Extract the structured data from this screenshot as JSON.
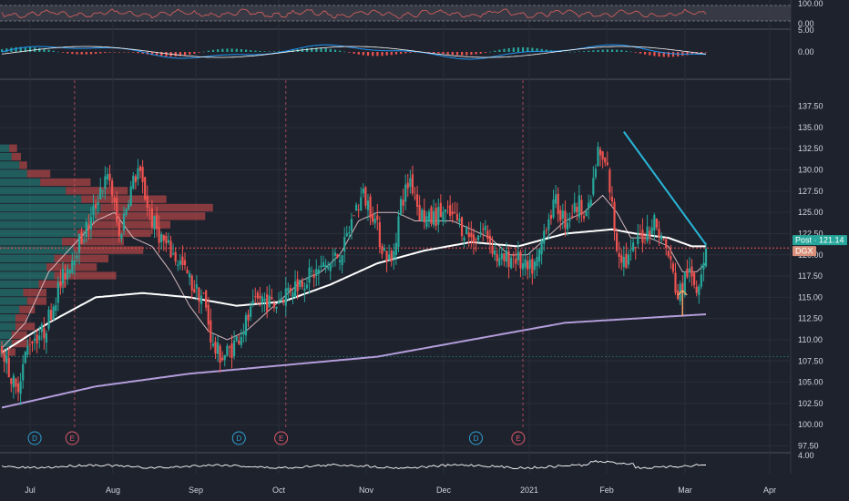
{
  "colors": {
    "background": "#1e222d",
    "grid": "#2a2e39",
    "axis_text": "#d1d4dc",
    "up": "#26a69a",
    "down": "#ef5350",
    "bar_up": "#26a69a",
    "bar_down": "#ef5350",
    "ma_short": "#d5b8bd",
    "ma_mid": "#ffffff",
    "ma_long": "#b39ddb",
    "trendline": "#29b6d9",
    "arrow": "#f0a36b",
    "post_badge": "#26a69a",
    "dgx_badge": "#d9907a",
    "dividend": "#2ea3d4",
    "earnings": "#e05a6a",
    "rsi_line": "#e06060",
    "macd_line": "#2196f3",
    "signal_line": "#ffffff",
    "bottom_line": "#ffffff"
  },
  "chart_data": {
    "type": "candlestick",
    "price_axis": {
      "ticks": [
        "137.50",
        "135.00",
        "132.50",
        "130.00",
        "127.50",
        "125.00",
        "122.50",
        "120.00",
        "117.50",
        "115.00",
        "112.50",
        "110.00",
        "107.50",
        "105.00",
        "102.50",
        "100.00",
        "97.50"
      ],
      "range": [
        96.8,
        139.5
      ]
    },
    "time_axis": {
      "ticks": [
        "Jul",
        "Aug",
        "Sep",
        "Oct",
        "Nov",
        "Dec",
        "2021",
        "Feb",
        "Mar",
        "Apr"
      ]
    },
    "badges": [
      {
        "label": "Post",
        "value": "121.14"
      },
      {
        "label": "DGX",
        "value": ""
      }
    ],
    "last_price": 121.14,
    "reference_level": 120.8,
    "price_anchors": [
      [
        0,
        109
      ],
      [
        6,
        104
      ],
      [
        12,
        110
      ],
      [
        18,
        111
      ],
      [
        24,
        116
      ],
      [
        32,
        121
      ],
      [
        38,
        124
      ],
      [
        42,
        128
      ],
      [
        46,
        129
      ],
      [
        50,
        122
      ],
      [
        54,
        127
      ],
      [
        58,
        130
      ],
      [
        64,
        124
      ],
      [
        70,
        121
      ],
      [
        76,
        119
      ],
      [
        82,
        116
      ],
      [
        86,
        115
      ],
      [
        90,
        109
      ],
      [
        94,
        108
      ],
      [
        98,
        109
      ],
      [
        104,
        112
      ],
      [
        110,
        115
      ],
      [
        116,
        114
      ],
      [
        122,
        116
      ],
      [
        128,
        117
      ],
      [
        134,
        118
      ],
      [
        140,
        119
      ],
      [
        146,
        121
      ],
      [
        150,
        125
      ],
      [
        154,
        127
      ],
      [
        158,
        125
      ],
      [
        162,
        121
      ],
      [
        166,
        119
      ],
      [
        170,
        126
      ],
      [
        174,
        129
      ],
      [
        178,
        125
      ],
      [
        182,
        124
      ],
      [
        188,
        125
      ],
      [
        194,
        124
      ],
      [
        200,
        122
      ],
      [
        206,
        123
      ],
      [
        212,
        119
      ],
      [
        218,
        120
      ],
      [
        224,
        118
      ],
      [
        228,
        119
      ],
      [
        232,
        124
      ],
      [
        236,
        126
      ],
      [
        240,
        124
      ],
      [
        246,
        126
      ],
      [
        250,
        125
      ],
      [
        254,
        132
      ],
      [
        258,
        130
      ],
      [
        262,
        121
      ],
      [
        266,
        119
      ],
      [
        272,
        122
      ],
      [
        278,
        124
      ],
      [
        284,
        120
      ],
      [
        288,
        115
      ],
      [
        292,
        118
      ],
      [
        296,
        116
      ],
      [
        300,
        121.14
      ]
    ],
    "volume_profile": [
      {
        "price": 132.5,
        "up": 1.2,
        "down": 1.0
      },
      {
        "price": 131.5,
        "up": 1.5,
        "down": 1.2
      },
      {
        "price": 130.5,
        "up": 2.5,
        "down": 1.0
      },
      {
        "price": 129.5,
        "up": 3.5,
        "down": 3.0
      },
      {
        "price": 128.5,
        "up": 5.2,
        "down": 6.5
      },
      {
        "price": 127.5,
        "up": 8.5,
        "down": 8.0
      },
      {
        "price": 126.5,
        "up": 10.5,
        "down": 11.0
      },
      {
        "price": 125.5,
        "up": 13.0,
        "down": 14.5
      },
      {
        "price": 124.5,
        "up": 12.5,
        "down": 14.0
      },
      {
        "price": 123.5,
        "up": 11.5,
        "down": 10.5
      },
      {
        "price": 122.5,
        "up": 10.0,
        "down": 9.5
      },
      {
        "price": 121.5,
        "up": 8.0,
        "down": 8.0
      },
      {
        "price": 120.5,
        "up": 9.5,
        "down": 9.0
      },
      {
        "price": 119.5,
        "up": 7.0,
        "down": 7.0
      },
      {
        "price": 118.5,
        "up": 6.0,
        "down": 6.5
      },
      {
        "price": 117.5,
        "up": 7.0,
        "down": 8.0
      },
      {
        "price": 116.5,
        "up": 5.0,
        "down": 3.5
      },
      {
        "price": 115.5,
        "up": 3.0,
        "down": 3.0
      },
      {
        "price": 114.5,
        "up": 3.5,
        "down": 2.5
      },
      {
        "price": 113.5,
        "up": 2.5,
        "down": 2.0
      },
      {
        "price": 112.5,
        "up": 2.0,
        "down": 1.5
      },
      {
        "price": 111.5,
        "up": 2.0,
        "down": 2.5
      },
      {
        "price": 110.5,
        "up": 1.5,
        "down": 2.0
      },
      {
        "price": 109.5,
        "up": 1.5,
        "down": 2.2
      },
      {
        "price": 108.5,
        "up": 1.0,
        "down": 1.0
      }
    ],
    "moving_averages": [
      {
        "period": "short",
        "points": [
          [
            0,
            109
          ],
          [
            10,
            112
          ],
          [
            20,
            118
          ],
          [
            30,
            121
          ],
          [
            40,
            124
          ],
          [
            48,
            125
          ],
          [
            56,
            122
          ],
          [
            64,
            121
          ],
          [
            72,
            118
          ],
          [
            80,
            114
          ],
          [
            88,
            111
          ],
          [
            96,
            110
          ],
          [
            104,
            111
          ],
          [
            112,
            113
          ],
          [
            120,
            115
          ],
          [
            128,
            117
          ],
          [
            136,
            118
          ],
          [
            144,
            120
          ],
          [
            152,
            124
          ],
          [
            160,
            125
          ],
          [
            168,
            125
          ],
          [
            176,
            124
          ],
          [
            184,
            124
          ],
          [
            192,
            124
          ],
          [
            200,
            123
          ],
          [
            208,
            122
          ],
          [
            216,
            120
          ],
          [
            224,
            120
          ],
          [
            232,
            122
          ],
          [
            240,
            124
          ],
          [
            248,
            125
          ],
          [
            256,
            127
          ],
          [
            262,
            125
          ],
          [
            268,
            122
          ],
          [
            276,
            122
          ],
          [
            284,
            121
          ],
          [
            290,
            118
          ],
          [
            296,
            118
          ],
          [
            300,
            119
          ]
        ]
      },
      {
        "period": "mid",
        "points": [
          [
            0,
            108.5
          ],
          [
            20,
            112
          ],
          [
            40,
            115
          ],
          [
            60,
            115.5
          ],
          [
            80,
            115
          ],
          [
            100,
            114
          ],
          [
            120,
            114.5
          ],
          [
            140,
            116.5
          ],
          [
            160,
            119
          ],
          [
            180,
            120.5
          ],
          [
            200,
            121.5
          ],
          [
            220,
            121
          ],
          [
            240,
            122.5
          ],
          [
            260,
            123
          ],
          [
            270,
            122.5
          ],
          [
            284,
            122
          ],
          [
            294,
            121
          ],
          [
            300,
            121
          ]
        ]
      },
      {
        "period": "long",
        "points": [
          [
            0,
            102
          ],
          [
            40,
            104.5
          ],
          [
            80,
            106
          ],
          [
            120,
            107
          ],
          [
            160,
            108
          ],
          [
            200,
            110
          ],
          [
            240,
            112
          ],
          [
            270,
            112.5
          ],
          [
            300,
            113
          ]
        ]
      }
    ],
    "trendline": [
      [
        265,
        134.5
      ],
      [
        300,
        121.2
      ]
    ],
    "arrow": {
      "x": 290,
      "from": 112.8,
      "to": 115.8
    },
    "events": [
      {
        "type": "dividend",
        "label": "D",
        "x": 14
      },
      {
        "type": "earnings",
        "label": "E",
        "x": 30
      },
      {
        "type": "dividend",
        "label": "D",
        "x": 101
      },
      {
        "type": "earnings",
        "label": "E",
        "x": 119
      },
      {
        "type": "dividend",
        "label": "D",
        "x": 202
      },
      {
        "type": "earnings",
        "label": "E",
        "x": 220
      }
    ],
    "event_lines": [
      31,
      121,
      222
    ],
    "rsi_panel": {
      "ticks": [
        "100.00",
        "0.00"
      ]
    },
    "macd_panel": {
      "ticks": [
        "5.00",
        "0.00"
      ]
    },
    "bottom_panel": {
      "ticks": [
        "4.00"
      ]
    },
    "x_count": 300
  }
}
